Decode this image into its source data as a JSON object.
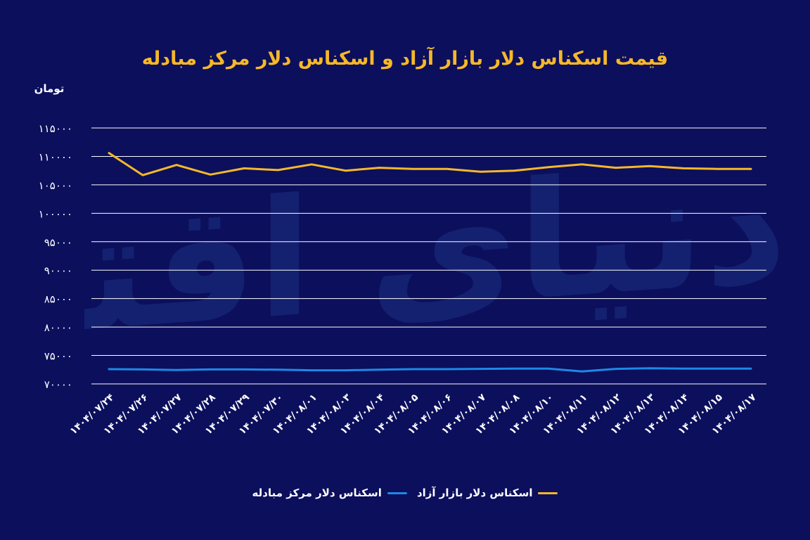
{
  "chart_data": {
    "type": "line",
    "title": "قیمت اسکناس دلار بازار آزاد و اسکناس دلار مرکز مبادله",
    "ylabel": "تومان",
    "xlabel": "",
    "ylim": [
      70000,
      115000
    ],
    "yticks": [
      70000,
      75000,
      80000,
      85000,
      90000,
      95000,
      100000,
      105000,
      110000,
      115000
    ],
    "ytick_labels": [
      "۷۰۰۰۰",
      "۷۵۰۰۰",
      "۸۰۰۰۰",
      "۸۵۰۰۰",
      "۹۰۰۰۰",
      "۹۵۰۰۰",
      "۱۰۰۰۰۰",
      "۱۰۵۰۰۰",
      "۱۱۰۰۰۰",
      "۱۱۵۰۰۰"
    ],
    "categories": [
      "۱۴۰۴/۰۷/۲۴",
      "۱۴۰۴/۰۷/۲۶",
      "۱۴۰۴/۰۷/۲۷",
      "۱۴۰۴/۰۷/۲۸",
      "۱۴۰۴/۰۷/۲۹",
      "۱۴۰۴/۰۷/۳۰",
      "۱۴۰۴/۰۸/۰۱",
      "۱۴۰۴/۰۸/۰۳",
      "۱۴۰۴/۰۸/۰۴",
      "۱۴۰۴/۰۸/۰۵",
      "۱۴۰۴/۰۸/۰۶",
      "۱۴۰۴/۰۸/۰۷",
      "۱۴۰۴/۰۸/۰۸",
      "۱۴۰۴/۰۸/۱۰",
      "۱۴۰۴/۰۸/۱۱",
      "۱۴۰۴/۰۸/۱۲",
      "۱۴۰۴/۰۸/۱۳",
      "۱۴۰۴/۰۸/۱۴",
      "۱۴۰۴/۰۸/۱۵",
      "۱۴۰۴/۰۸/۱۷"
    ],
    "series": [
      {
        "name": "اسکناس دلار بازار آزاد",
        "color": "#f6b829",
        "values": [
          110600,
          106700,
          108500,
          106800,
          107900,
          107600,
          108600,
          107500,
          108000,
          107800,
          107800,
          107300,
          107500,
          108100,
          108600,
          108000,
          108300,
          107900,
          107800,
          107800
        ]
      },
      {
        "name": "اسکناس دلار مرکز مبادله",
        "color": "#1e88e5",
        "values": [
          72600,
          72550,
          72450,
          72550,
          72550,
          72500,
          72400,
          72400,
          72500,
          72600,
          72600,
          72650,
          72700,
          72700,
          72200,
          72650,
          72750,
          72700,
          72700,
          72700
        ]
      }
    ],
    "grid": true,
    "legend_position": "bottom-center"
  },
  "watermark": "دنیای اقتصاد"
}
